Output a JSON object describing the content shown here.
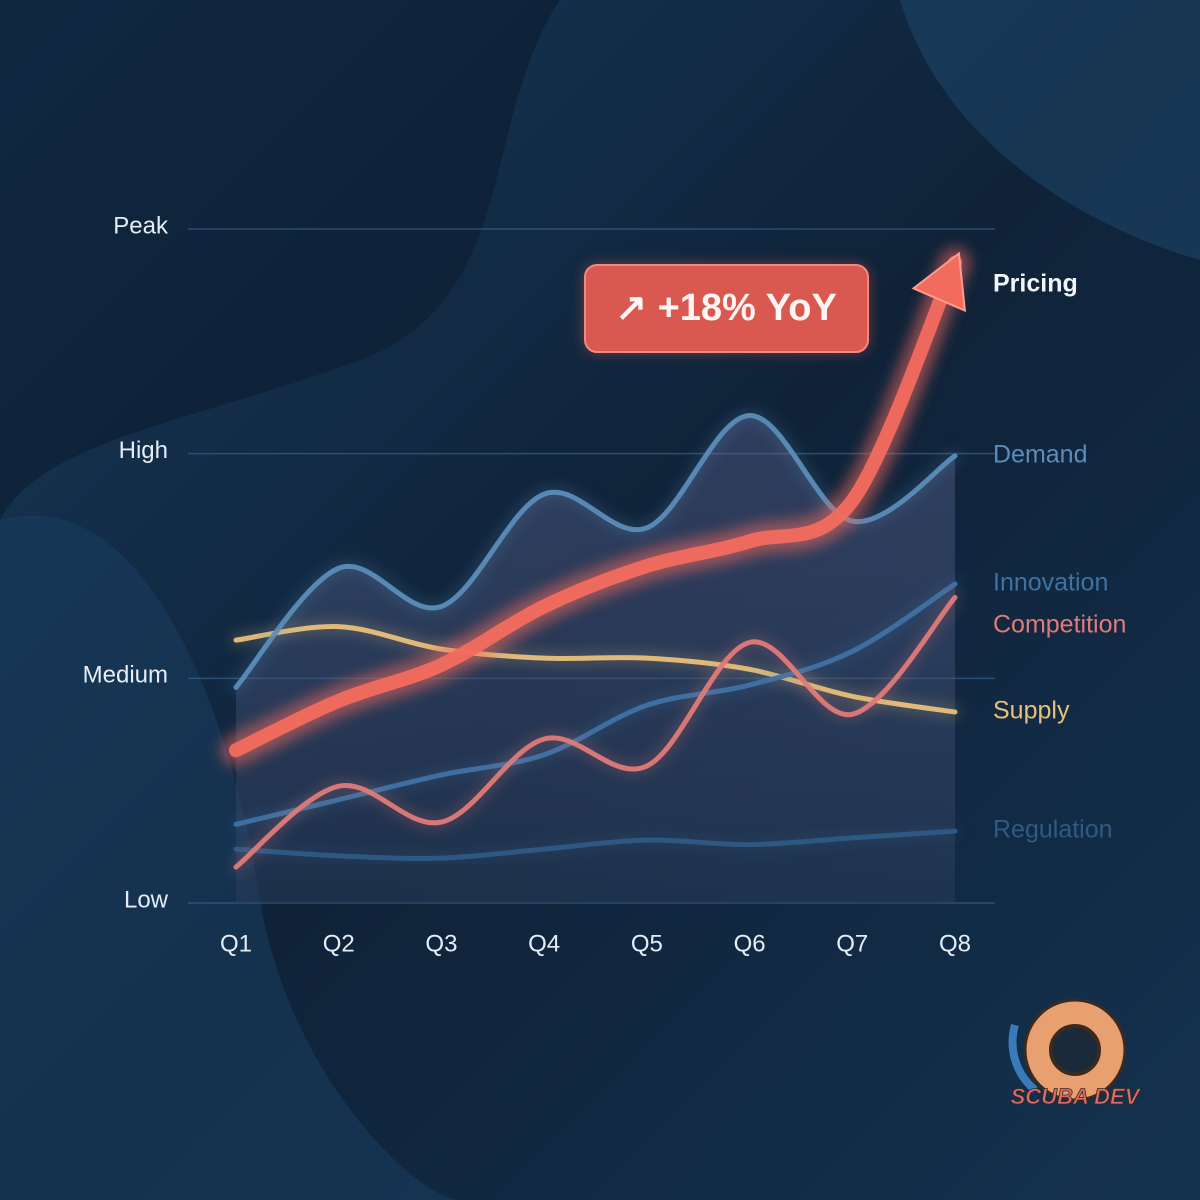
{
  "chart_data": {
    "type": "line",
    "annotation": "↗ +18% YoY",
    "logo": "SCUBA DEV",
    "categories": [
      "Q1",
      "Q2",
      "Q3",
      "Q4",
      "Q5",
      "Q6",
      "Q7",
      "Q8"
    ],
    "ylim": [
      0,
      3
    ],
    "yticks": [
      {
        "value": 0,
        "label": "Low"
      },
      {
        "value": 1,
        "label": "Medium"
      },
      {
        "value": 2,
        "label": "High"
      },
      {
        "value": 3,
        "label": "Peak"
      }
    ],
    "grid": true,
    "series": [
      {
        "name": "Pricing",
        "color": "#f26b5e",
        "values": [
          0.68,
          0.9,
          1.06,
          1.32,
          1.5,
          1.61,
          1.79,
          2.85
        ]
      },
      {
        "name": "Demand",
        "color": "#5b8db8",
        "values": [
          0.96,
          1.49,
          1.32,
          1.82,
          1.67,
          2.17,
          1.7,
          1.99
        ]
      },
      {
        "name": "Innovation",
        "color": "#3f72a3",
        "values": [
          0.35,
          0.46,
          0.57,
          0.66,
          0.88,
          0.97,
          1.12,
          1.42
        ]
      },
      {
        "name": "Competition",
        "color": "#e07a78",
        "values": [
          0.16,
          0.52,
          0.36,
          0.73,
          0.61,
          1.16,
          0.84,
          1.36
        ]
      },
      {
        "name": "Supply",
        "color": "#e8c07a",
        "values": [
          1.17,
          1.23,
          1.13,
          1.09,
          1.09,
          1.04,
          0.92,
          0.85
        ]
      },
      {
        "name": "Regulation",
        "color": "#2f5a85",
        "values": [
          0.24,
          0.21,
          0.2,
          0.24,
          0.28,
          0.26,
          0.29,
          0.32
        ]
      }
    ]
  }
}
